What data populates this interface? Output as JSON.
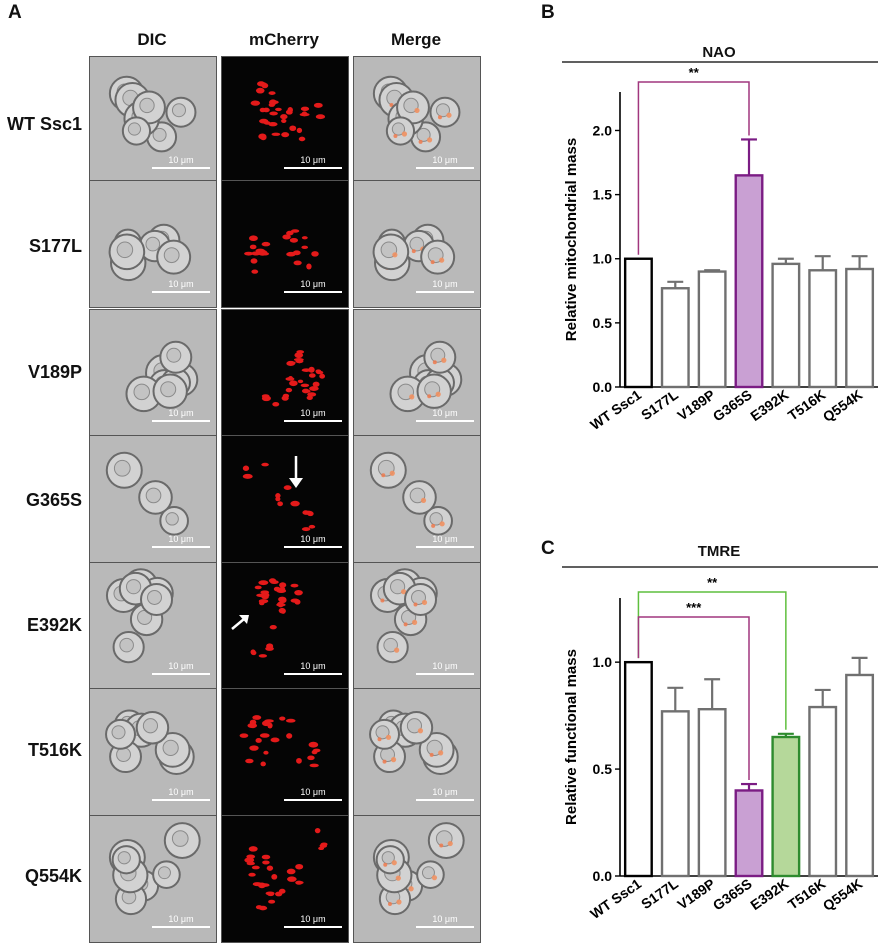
{
  "panels": {
    "a": {
      "letter": "A",
      "columns": [
        "DIC",
        "mCherry",
        "Merge"
      ],
      "rows": [
        "WT Ssc1",
        "S177L",
        "V189P",
        "G365S",
        "E392K",
        "T516K",
        "Q554K"
      ],
      "scale_label": "10 μm"
    },
    "b": {
      "letter": "B",
      "header": "NAO"
    },
    "c": {
      "letter": "C",
      "header": "TMRE"
    }
  },
  "colors": {
    "black": "#000000",
    "gray": "#707070",
    "purple_fill": "#c9a0d3",
    "purple_edge": "#7b1c84",
    "green_fill": "#b5d89a",
    "green_edge": "#2e8b2e",
    "bracket_purple": "#a1377e",
    "bracket_green": "#5fbf3f"
  },
  "chart_data": [
    {
      "type": "bar",
      "title": "NAO",
      "ylabel": "Relative mitochondrial mass",
      "xlabel": "",
      "categories": [
        "WT Ssc1",
        "S177L",
        "V189P",
        "G365S",
        "E392K",
        "T516K",
        "Q554K"
      ],
      "values": [
        1.0,
        0.77,
        0.9,
        1.65,
        0.96,
        0.91,
        0.92
      ],
      "errors": [
        0,
        0.05,
        0.01,
        0.28,
        0.04,
        0.11,
        0.1
      ],
      "ylim": [
        0,
        2.3
      ],
      "yticks": [
        0.0,
        0.5,
        1.0,
        1.5,
        2.0
      ],
      "ytick_labels": [
        "0.0",
        "0.5",
        "1.0",
        "1.5",
        "2.0"
      ],
      "bar_styles": [
        "black",
        "gray",
        "gray",
        "purple",
        "gray",
        "gray",
        "gray"
      ],
      "significance": [
        {
          "from": "WT Ssc1",
          "to": "G365S",
          "label": "**",
          "color": "purple"
        }
      ]
    },
    {
      "type": "bar",
      "title": "TMRE",
      "ylabel": "Relative functional mass",
      "xlabel": "",
      "categories": [
        "WT Ssc1",
        "S177L",
        "V189P",
        "G365S",
        "E392K",
        "T516K",
        "Q554K"
      ],
      "values": [
        1.0,
        0.77,
        0.78,
        0.4,
        0.65,
        0.79,
        0.94
      ],
      "errors": [
        0,
        0.11,
        0.14,
        0.03,
        0.015,
        0.08,
        0.08
      ],
      "ylim": [
        0,
        1.3
      ],
      "yticks": [
        0.0,
        0.5,
        1.0
      ],
      "ytick_labels": [
        "0.0",
        "0.5",
        "1.0"
      ],
      "bar_styles": [
        "black",
        "gray",
        "gray",
        "purple",
        "green",
        "gray",
        "gray"
      ],
      "significance": [
        {
          "from": "WT Ssc1",
          "to": "E392K",
          "label": "**",
          "color": "green"
        },
        {
          "from": "WT Ssc1",
          "to": "G365S",
          "label": "***",
          "color": "purple"
        }
      ]
    }
  ]
}
